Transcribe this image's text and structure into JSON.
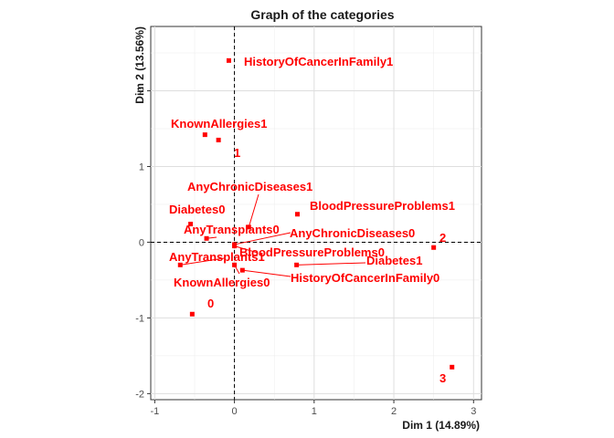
{
  "chart_data": {
    "type": "scatter",
    "title": "Graph of the categories",
    "xlabel": "Dim 1 (14.89%)",
    "ylabel": "Dim 2 (13.56%)",
    "xlim": [
      -1.05,
      3.1
    ],
    "ylim": [
      -2.08,
      2.85
    ],
    "x_ticks": [
      "-1",
      "0",
      "1",
      "2",
      "3"
    ],
    "x_tick_values": [
      -1,
      0,
      1,
      2,
      3
    ],
    "y_ticks": [
      "-2",
      "-1",
      "0",
      "1",
      "2"
    ],
    "y_tick_values": [
      -2,
      -1,
      0,
      1,
      2
    ],
    "grid": true,
    "reference_lines": {
      "x": 0,
      "y": 0,
      "style": "dashed"
    },
    "point_color": "#ff0000",
    "points": [
      {
        "label": "HistoryOfCancerInFamily1",
        "x": -0.07,
        "y": 2.4
      },
      {
        "label": "KnownAllergies1",
        "x": -0.37,
        "y": 1.42
      },
      {
        "label": "1",
        "x": -0.2,
        "y": 1.35
      },
      {
        "label": "AnyChronicDiseases1",
        "x": 0.18,
        "y": 0.2
      },
      {
        "label": "BloodPressureProblems1",
        "x": 0.79,
        "y": 0.37
      },
      {
        "label": "Diabetes0",
        "x": -0.55,
        "y": 0.24
      },
      {
        "label": "AnyTransplants0",
        "x": -0.35,
        "y": 0.05
      },
      {
        "label": "AnyChronicDiseases0",
        "x": 0.0,
        "y": -0.03
      },
      {
        "label": "2",
        "x": 2.5,
        "y": -0.07
      },
      {
        "label": "BloodPressureProblems0",
        "x": 0.0,
        "y": -0.05
      },
      {
        "label": "AnyTransplants1",
        "x": -0.68,
        "y": -0.3
      },
      {
        "label": "Diabetes1",
        "x": 0.78,
        "y": -0.3
      },
      {
        "label": "HistoryOfCancerInFamily0",
        "x": 0.1,
        "y": -0.37
      },
      {
        "label": "KnownAllergies0",
        "x": 0.0,
        "y": -0.3
      },
      {
        "label": "0",
        "x": -0.53,
        "y": -0.95
      },
      {
        "label": "3",
        "x": 2.73,
        "y": -1.65
      }
    ]
  }
}
